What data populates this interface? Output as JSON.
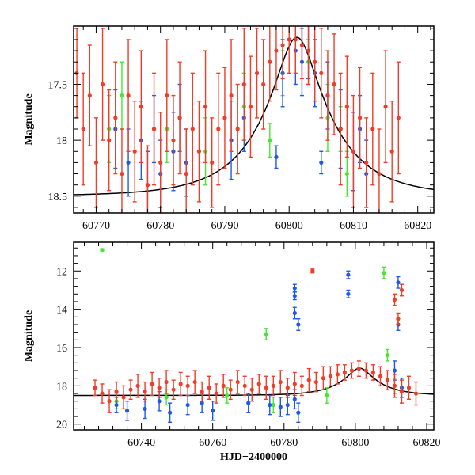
{
  "chart_data": [
    {
      "type": "scatter",
      "title": "",
      "xlabel": "",
      "ylabel": "Magnitude",
      "xlim": [
        60766.5,
        60822.5
      ],
      "ylim": [
        18.65,
        16.98
      ],
      "y_inverted": true,
      "xticks": [
        60770,
        60780,
        60790,
        60800,
        60810,
        60820
      ],
      "yticks": [
        17.5,
        18,
        18.5
      ],
      "grid": false,
      "legend": "none",
      "colors": {
        "red": "#f03c28",
        "blue": "#1e5ae6",
        "green": "#46e632",
        "model": "#000000"
      },
      "model_curve": {
        "peak_x": 60801.2,
        "baseline_mag": 18.5,
        "peak_mag": 17.08,
        "tE_days": 10.5
      },
      "series": [
        {
          "color": "red",
          "points": [
            [
              60767,
              17.4,
              0.4
            ],
            [
              60768,
              17.9,
              0.5
            ],
            [
              60769,
              17.6,
              0.45
            ],
            [
              60770,
              18.2,
              0.4
            ],
            [
              60771,
              17.5,
              0.5
            ],
            [
              60772,
              18.0,
              0.45
            ],
            [
              60773,
              17.8,
              0.5
            ],
            [
              60774,
              18.3,
              0.4
            ],
            [
              60775,
              17.6,
              0.5
            ],
            [
              60776,
              18.1,
              0.45
            ],
            [
              60777,
              17.7,
              0.5
            ],
            [
              60778,
              18.4,
              0.35
            ],
            [
              60779,
              17.9,
              0.5
            ],
            [
              60780,
              18.2,
              0.45
            ],
            [
              60781,
              17.6,
              0.5
            ],
            [
              60782,
              18.0,
              0.4
            ],
            [
              60783,
              17.8,
              0.5
            ],
            [
              60784,
              18.3,
              0.4
            ],
            [
              60785,
              17.9,
              0.5
            ],
            [
              60786,
              18.1,
              0.45
            ],
            [
              60787,
              17.7,
              0.5
            ],
            [
              60788,
              18.2,
              0.4
            ],
            [
              60789,
              17.9,
              0.5
            ],
            [
              60790,
              17.8,
              0.45
            ],
            [
              60791,
              17.6,
              0.5
            ],
            [
              60792,
              17.9,
              0.4
            ],
            [
              60793,
              17.5,
              0.5
            ],
            [
              60794,
              17.7,
              0.45
            ],
            [
              60795,
              17.4,
              0.4
            ],
            [
              60796,
              17.5,
              0.4
            ],
            [
              60797,
              17.3,
              0.35
            ],
            [
              60798,
              17.2,
              0.35
            ],
            [
              60799,
              17.15,
              0.3
            ],
            [
              60800,
              17.1,
              0.3
            ],
            [
              60801,
              17.1,
              0.3
            ],
            [
              60802,
              17.15,
              0.3
            ],
            [
              60803,
              17.2,
              0.3
            ],
            [
              60804,
              17.3,
              0.35
            ],
            [
              60805,
              17.4,
              0.4
            ],
            [
              60806,
              17.6,
              0.4
            ],
            [
              60807,
              17.5,
              0.45
            ],
            [
              60808,
              17.9,
              0.5
            ],
            [
              60809,
              17.7,
              0.45
            ],
            [
              60810,
              18.1,
              0.5
            ],
            [
              60811,
              17.8,
              0.45
            ],
            [
              60812,
              18.2,
              0.4
            ],
            [
              60813,
              17.9,
              0.5
            ],
            [
              60814,
              18.3,
              0.4
            ],
            [
              60815,
              17.7,
              0.5
            ],
            [
              60816,
              18.1,
              0.45
            ],
            [
              60817,
              17.8,
              0.5
            ]
          ]
        },
        {
          "color": "blue",
          "points": [
            [
              60773,
              17.9,
              0.35
            ],
            [
              60775,
              18.2,
              0.3
            ],
            [
              60777,
              18.0,
              0.35
            ],
            [
              60778,
              18.4,
              0.3
            ],
            [
              60779,
              17.9,
              0.3
            ],
            [
              60780,
              18.3,
              0.3
            ],
            [
              60782,
              18.1,
              0.35
            ],
            [
              60783,
              17.8,
              0.3
            ],
            [
              60784,
              18.2,
              0.3
            ],
            [
              60791,
              18.0,
              0.35
            ],
            [
              60793,
              17.8,
              0.3
            ],
            [
              60798,
              18.15,
              0.1
            ],
            [
              60799,
              17.4,
              0.3
            ],
            [
              60801,
              17.2,
              0.3
            ],
            [
              60802,
              17.3,
              0.3
            ],
            [
              60803,
              17.2,
              0.25
            ],
            [
              60804,
              17.4,
              0.3
            ],
            [
              60805,
              18.2,
              0.1
            ],
            [
              60806,
              17.6,
              0.3
            ],
            [
              60808,
              17.9,
              0.35
            ],
            [
              60810,
              18.1,
              0.35
            ],
            [
              60811,
              17.9,
              0.3
            ],
            [
              60812,
              18.3,
              0.3
            ]
          ]
        },
        {
          "color": "green",
          "points": [
            [
              60772,
              17.9,
              0.3
            ],
            [
              60774,
              17.6,
              0.3
            ],
            [
              60781,
              17.9,
              0.3
            ],
            [
              60787,
              18.1,
              0.3
            ],
            [
              60793,
              17.7,
              0.3
            ],
            [
              60797,
              18.0,
              0.15
            ],
            [
              60799,
              17.4,
              0.2
            ],
            [
              60803,
              17.3,
              0.2
            ],
            [
              60806,
              17.8,
              0.3
            ],
            [
              60808,
              17.9,
              0.2
            ],
            [
              60809,
              18.3,
              0.2
            ]
          ]
        }
      ]
    },
    {
      "type": "scatter",
      "title": "",
      "xlabel": "HJD−2400000",
      "ylabel": "Magnitude",
      "xlim": [
        60721,
        60822
      ],
      "ylim": [
        20.3,
        10.5
      ],
      "y_inverted": true,
      "xticks": [
        60740,
        60760,
        60780,
        60800,
        60820
      ],
      "yticks": [
        12,
        14,
        16,
        18,
        20
      ],
      "grid": false,
      "legend": "none",
      "colors": {
        "red": "#f03c28",
        "blue": "#1e5ae6",
        "green": "#46e632",
        "model": "#000000"
      },
      "model_curve": {
        "peak_x": 60801.2,
        "baseline_mag": 18.5,
        "peak_mag": 17.08,
        "tE_days": 10.5
      },
      "series": [
        {
          "color": "red",
          "points": [
            [
              60727,
              18.1,
              0.4
            ],
            [
              60729,
              18.4,
              0.5
            ],
            [
              60731,
              18.8,
              0.6
            ],
            [
              60733,
              18.3,
              0.5
            ],
            [
              60735,
              18.6,
              0.6
            ],
            [
              60737,
              18.2,
              0.5
            ],
            [
              60739,
              18.0,
              0.6
            ],
            [
              60741,
              18.3,
              0.5
            ],
            [
              60743,
              17.9,
              0.6
            ],
            [
              60745,
              18.1,
              0.5
            ],
            [
              60747,
              17.8,
              0.6
            ],
            [
              60749,
              18.2,
              0.5
            ],
            [
              60751,
              17.9,
              0.6
            ],
            [
              60753,
              18.0,
              0.5
            ],
            [
              60755,
              17.8,
              0.6
            ],
            [
              60757,
              18.3,
              0.5
            ],
            [
              60759,
              18.1,
              0.6
            ],
            [
              60761,
              18.4,
              0.5
            ],
            [
              60763,
              18.0,
              0.6
            ],
            [
              60765,
              18.2,
              0.5
            ],
            [
              60767,
              17.8,
              0.6
            ],
            [
              60769,
              18.0,
              0.5
            ],
            [
              60771,
              18.2,
              0.6
            ],
            [
              60773,
              17.9,
              0.5
            ],
            [
              60775,
              18.1,
              0.6
            ],
            [
              60777,
              18.0,
              0.5
            ],
            [
              60779,
              17.8,
              0.6
            ],
            [
              60781,
              18.1,
              0.5
            ],
            [
              60783,
              17.9,
              0.6
            ],
            [
              60785,
              18.0,
              0.5
            ],
            [
              60787,
              17.7,
              0.6
            ],
            [
              60789,
              17.8,
              0.5
            ],
            [
              60791,
              17.6,
              0.6
            ],
            [
              60793,
              17.5,
              0.5
            ],
            [
              60795,
              17.4,
              0.5
            ],
            [
              60797,
              17.3,
              0.4
            ],
            [
              60799,
              17.2,
              0.4
            ],
            [
              60801,
              17.1,
              0.4
            ],
            [
              60803,
              17.2,
              0.4
            ],
            [
              60805,
              17.3,
              0.4
            ],
            [
              60807,
              17.5,
              0.5
            ],
            [
              60809,
              17.7,
              0.5
            ],
            [
              60811,
              18.0,
              0.6
            ],
            [
              60813,
              18.3,
              0.6
            ],
            [
              60815,
              18.1,
              0.6
            ],
            [
              60817,
              18.4,
              0.6
            ],
            [
              60788,
              12.0,
              0.1
            ],
            [
              60811,
              13.5,
              0.3
            ],
            [
              60812,
              14.5,
              0.3
            ],
            [
              60813,
              13.0,
              0.3
            ]
          ]
        },
        {
          "color": "blue",
          "points": [
            [
              60733,
              19.0,
              0.4
            ],
            [
              60736,
              19.3,
              0.5
            ],
            [
              60741,
              19.2,
              0.5
            ],
            [
              60745,
              18.8,
              0.5
            ],
            [
              60748,
              19.4,
              0.5
            ],
            [
              60753,
              19.0,
              0.5
            ],
            [
              60757,
              18.9,
              0.5
            ],
            [
              60760,
              19.3,
              0.5
            ],
            [
              60770,
              18.9,
              0.5
            ],
            [
              60776,
              19.0,
              0.5
            ],
            [
              60779,
              19.1,
              0.5
            ],
            [
              60781,
              19.0,
              0.5
            ],
            [
              60783,
              18.7,
              0.5
            ],
            [
              60784,
              19.4,
              0.5
            ],
            [
              60783,
              12.9,
              0.2
            ],
            [
              60783,
              13.3,
              0.2
            ],
            [
              60783,
              14.2,
              0.3
            ],
            [
              60784,
              14.8,
              0.3
            ],
            [
              60798,
              12.2,
              0.2
            ],
            [
              60798,
              13.2,
              0.2
            ],
            [
              60812,
              12.6,
              0.3
            ],
            [
              60812,
              14.8,
              0.3
            ],
            [
              60811,
              17.2,
              0.5
            ],
            [
              60813,
              18.1,
              0.5
            ]
          ]
        },
        {
          "color": "green",
          "points": [
            [
              60729,
              10.9,
              0.05
            ],
            [
              60733,
              18.8,
              0.4
            ],
            [
              60747,
              18.6,
              0.4
            ],
            [
              60764,
              18.5,
              0.4
            ],
            [
              60775,
              15.3,
              0.3
            ],
            [
              60777,
              19.0,
              0.4
            ],
            [
              60792,
              18.5,
              0.4
            ],
            [
              60808,
              12.1,
              0.3
            ],
            [
              60809,
              16.4,
              0.3
            ],
            [
              60811,
              18.0,
              0.4
            ]
          ]
        }
      ]
    }
  ]
}
